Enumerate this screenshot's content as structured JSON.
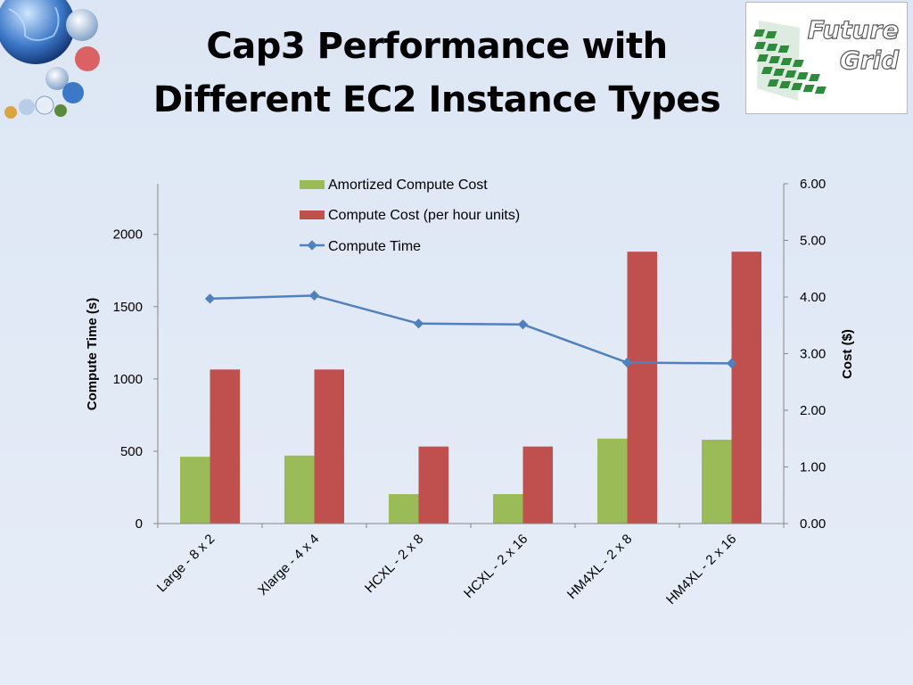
{
  "slide": {
    "title_line1": "Cap3 Performance with",
    "title_line2": "Different EC2 Instance Types"
  },
  "logo": {
    "text_line1": "Future",
    "text_line2": "Grid"
  },
  "corner_art": {
    "icon": "globe-collage-icon"
  },
  "colors": {
    "amortized": "#9bbb59",
    "compute_cost": "#c0504d",
    "compute_time": "#4f81bd",
    "logo_green": "#2e7d32"
  },
  "chart_data": {
    "type": "bar",
    "categories": [
      "Large - 8 x 2",
      "Xlarge - 4 x 4",
      "HCXL - 2 x 8",
      "HCXL - 2 x 16",
      "HM4XL - 2 x 8",
      "HM4XL - 2 x 16"
    ],
    "series": [
      {
        "name": "Amortized Compute Cost",
        "type": "bar",
        "axis": "right",
        "color": "#9bbb59",
        "values": [
          1.18,
          1.2,
          0.52,
          0.52,
          1.5,
          1.48
        ]
      },
      {
        "name": "Compute Cost (per hour units)",
        "type": "bar",
        "axis": "right",
        "color": "#c0504d",
        "values": [
          2.72,
          2.72,
          1.36,
          1.36,
          4.8,
          4.8
        ]
      },
      {
        "name": "Compute Time",
        "type": "line",
        "axis": "left",
        "color": "#4f81bd",
        "values": [
          1555,
          1577,
          1383,
          1377,
          1113,
          1108
        ]
      }
    ],
    "ylabel": "Compute Time (s)",
    "ylabel_right": "Cost ($)",
    "ylim": [
      0,
      2350
    ],
    "ylim_right": [
      0,
      6.0
    ],
    "yticks": [
      "0",
      "500",
      "1000",
      "1500",
      "2000"
    ],
    "yticks_right": [
      "0.00",
      "1.00",
      "2.00",
      "3.00",
      "4.00",
      "5.00",
      "6.00"
    ],
    "legend_position": "top-center",
    "grid": false
  }
}
